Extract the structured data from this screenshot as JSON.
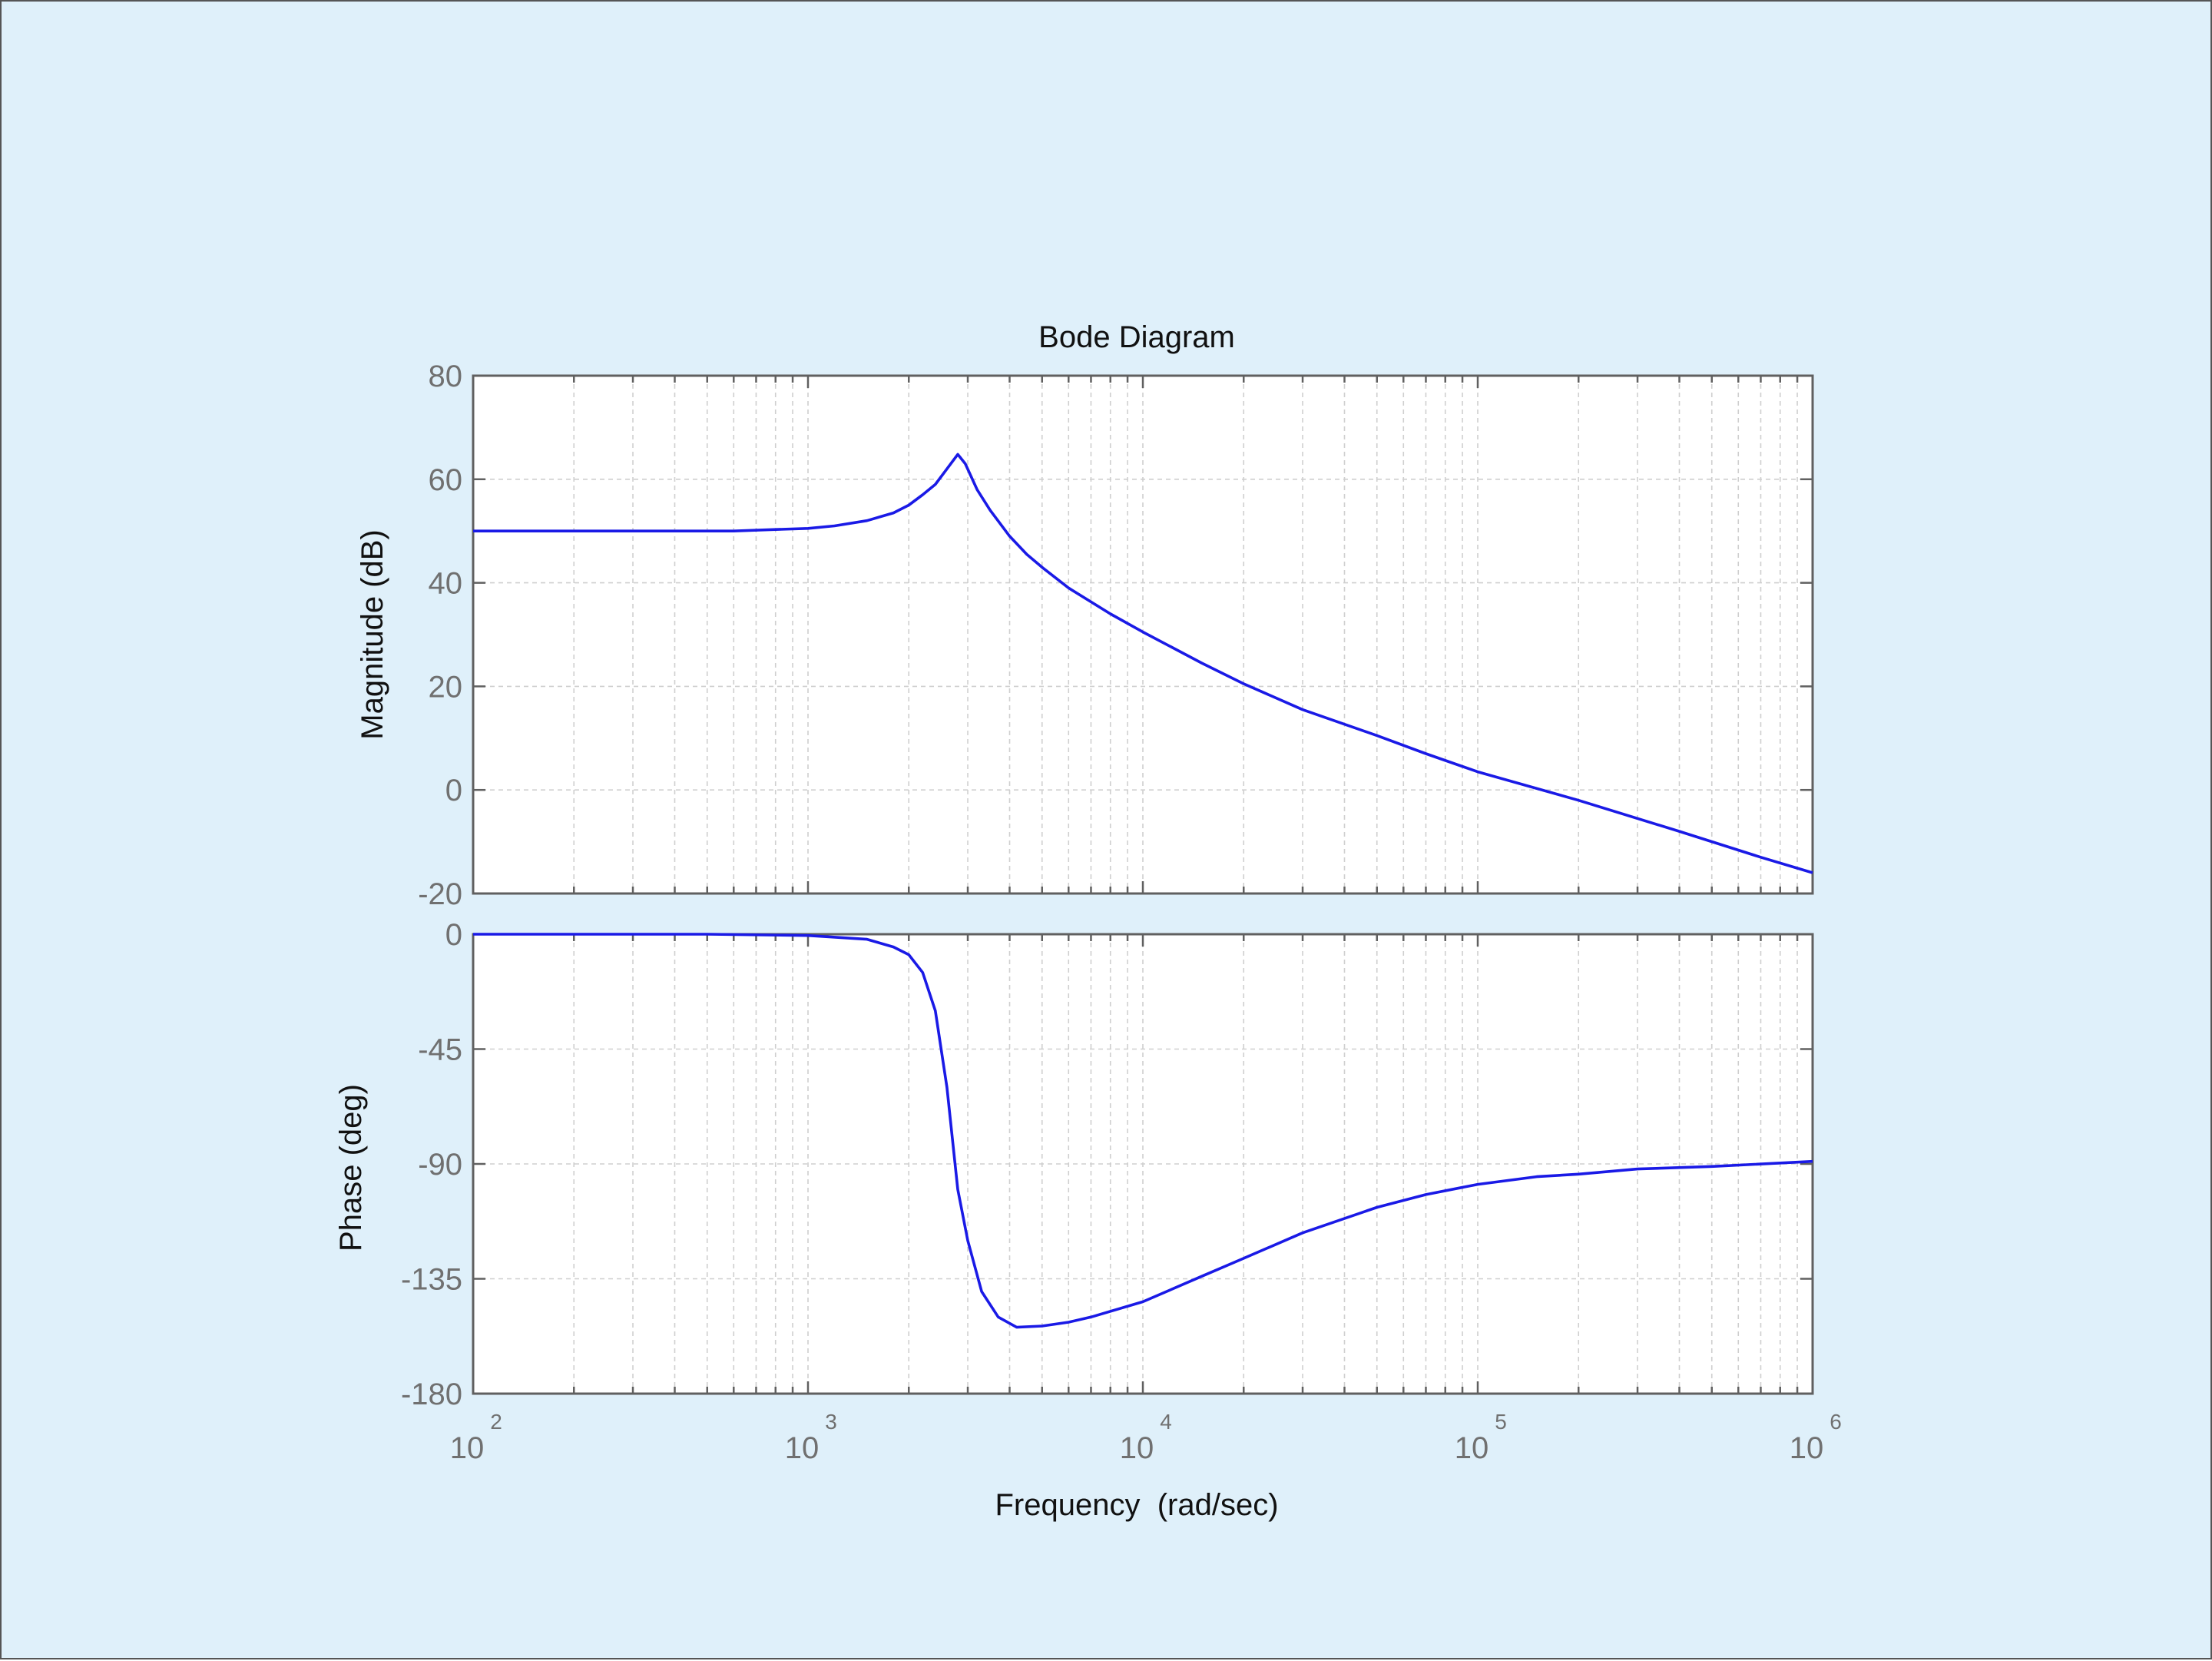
{
  "window": {
    "background": "#dff0fa"
  },
  "chart_data": {
    "type": "line",
    "title": "Bode Diagram",
    "xlabel": "Frequency  (rad/sec)",
    "x_scale": "log",
    "xlim": [
      100,
      1000000
    ],
    "x_ticks": [
      {
        "base": "10",
        "exp": "2",
        "value": 100
      },
      {
        "base": "10",
        "exp": "3",
        "value": 1000
      },
      {
        "base": "10",
        "exp": "4",
        "value": 10000
      },
      {
        "base": "10",
        "exp": "5",
        "value": 100000
      },
      {
        "base": "10",
        "exp": "6",
        "value": 1000000
      }
    ],
    "grid": true,
    "line_color": "#1a1ae6",
    "panels": [
      {
        "name": "magnitude",
        "ylabel": "Magnitude (dB)",
        "ylim": [
          -20,
          80
        ],
        "y_ticks": [
          80,
          60,
          40,
          20,
          0,
          -20
        ],
        "series": [
          {
            "x": [
              100,
              200,
              400,
              600,
              800,
              1000,
              1200,
              1500,
              1800,
              2000,
              2200,
              2400,
              2600,
              2800,
              2950,
              3200,
              3500,
              4000,
              4500,
              5000,
              6000,
              8000,
              10000,
              15000,
              20000,
              30000,
              50000,
              70000,
              100000,
              200000,
              400000,
              700000,
              1000000
            ],
            "y": [
              50,
              50,
              50,
              50,
              50.3,
              50.5,
              51,
              52,
              53.5,
              55,
              57,
              59,
              62,
              64.8,
              63,
              58,
              54,
              49,
              45.5,
              43,
              39,
              34,
              30.5,
              24.5,
              20.5,
              15.5,
              10.5,
              7,
              3.5,
              -2,
              -8,
              -13,
              -16
            ]
          }
        ]
      },
      {
        "name": "phase",
        "ylabel": "Phase (deg)",
        "ylim": [
          -180,
          0
        ],
        "y_ticks": [
          0,
          -45,
          -90,
          -135,
          -180
        ],
        "series": [
          {
            "x": [
              100,
              500,
              1000,
              1500,
              1800,
              2000,
              2200,
              2400,
              2600,
              2800,
              3000,
              3300,
              3700,
              4200,
              5000,
              6000,
              7000,
              10000,
              15000,
              20000,
              30000,
              50000,
              70000,
              100000,
              150000,
              200000,
              300000,
              500000,
              1000000
            ],
            "y": [
              0,
              0,
              -0.5,
              -2,
              -5,
              -8,
              -15,
              -30,
              -60,
              -100,
              -120,
              -140,
              -150,
              -154,
              -153.5,
              -152,
              -150,
              -144,
              -134,
              -127,
              -117,
              -107,
              -102,
              -98,
              -95,
              -94,
              -92,
              -91,
              -89
            ]
          }
        ]
      }
    ]
  }
}
